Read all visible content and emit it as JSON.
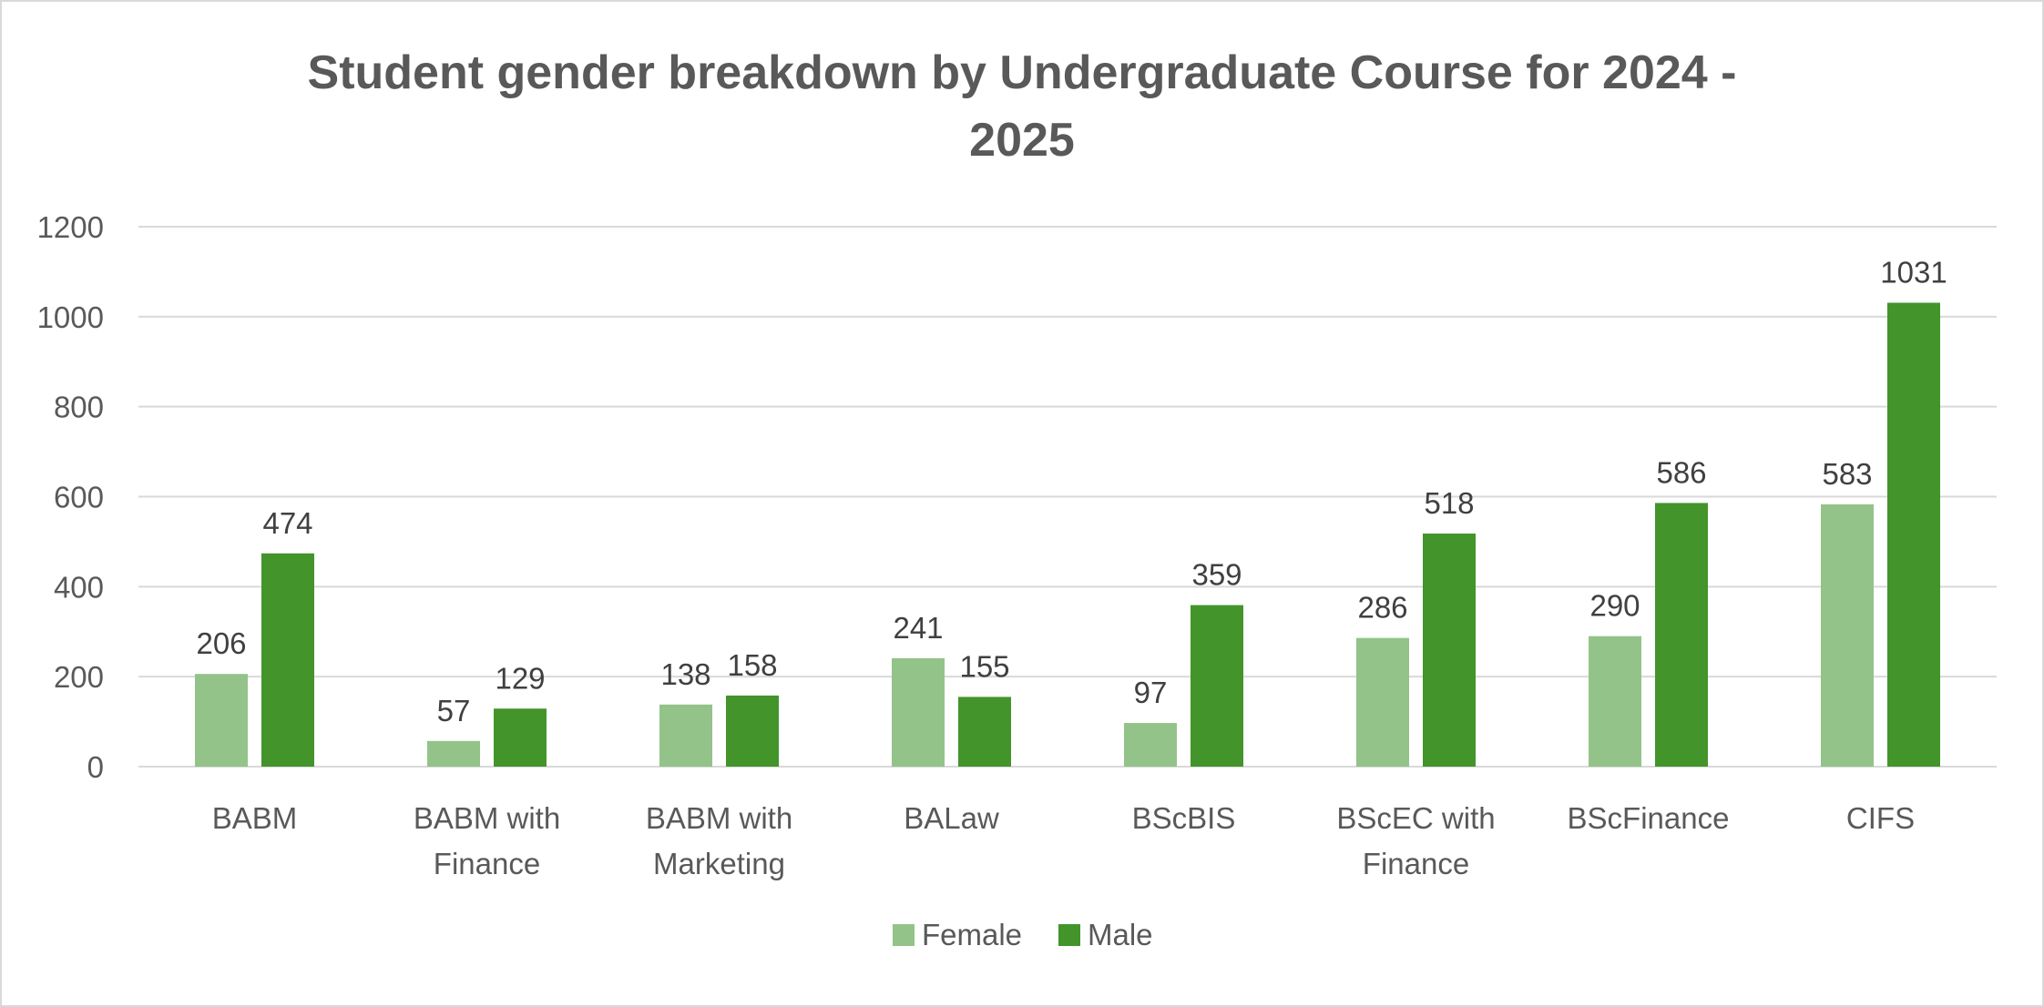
{
  "chart_data": {
    "type": "bar",
    "title": "Student gender breakdown by Undergraduate Course for 2024 - 2025",
    "title_lines": [
      "Student gender breakdown by Undergraduate Course for 2024 -",
      "2025"
    ],
    "categories": [
      "BABM",
      "BABM with Finance",
      "BABM with Marketing",
      "BALaw",
      "BScBIS",
      "BScEC with Finance",
      "BScFinance",
      "CIFS"
    ],
    "category_lines": [
      [
        "BABM"
      ],
      [
        "BABM with",
        "Finance"
      ],
      [
        "BABM with",
        "Marketing"
      ],
      [
        "BALaw"
      ],
      [
        "BScBIS"
      ],
      [
        "BScEC with",
        "Finance"
      ],
      [
        "BScFinance"
      ],
      [
        "CIFS"
      ]
    ],
    "series": [
      {
        "name": "Female",
        "color": "#93c389",
        "values": [
          206,
          57,
          138,
          241,
          97,
          286,
          290,
          583
        ]
      },
      {
        "name": "Male",
        "color": "#43942b",
        "values": [
          474,
          129,
          158,
          155,
          359,
          518,
          586,
          1031
        ]
      }
    ],
    "ylim": [
      0,
      1200
    ],
    "yticks": [
      0,
      200,
      400,
      600,
      800,
      1000,
      1200
    ],
    "xlabel": "",
    "ylabel": "",
    "grid": true,
    "legend": "bottom",
    "data_labels": true
  }
}
